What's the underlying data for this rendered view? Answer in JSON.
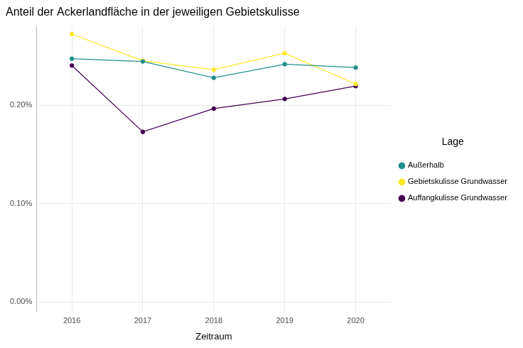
{
  "chart_data": {
    "type": "line",
    "title": "Anteil der Ackerlandfläche in der jeweiligen Gebietskulisse",
    "x_label": "Zeitraum",
    "categories": [
      "2016",
      "2017",
      "2018",
      "2019",
      "2020"
    ],
    "series": [
      {
        "name": "Außerhalb",
        "color": "#21908C",
        "values": [
          0.2472,
          0.2444,
          0.2278,
          0.2417,
          0.2382
        ]
      },
      {
        "name": "Gebietskulisse Grundwasser",
        "color": "#FDE725",
        "values": [
          0.2722,
          0.2451,
          0.2361,
          0.2528,
          0.2215
        ]
      },
      {
        "name": "Auffangkulisse Grundwasser",
        "color": "#440154",
        "values": [
          0.2403,
          0.1729,
          0.1965,
          0.2063,
          0.2194
        ]
      }
    ],
    "ylim": [
      -0.01,
      0.28
    ],
    "yticks": [
      {
        "value": 0,
        "label": "0.00%"
      },
      {
        "value": 0.1,
        "label": "0.10%"
      },
      {
        "value": 0.2,
        "label": "0.20%"
      }
    ],
    "grid": true,
    "legend": "right",
    "legend_title": "Lage",
    "marker": "circle"
  }
}
